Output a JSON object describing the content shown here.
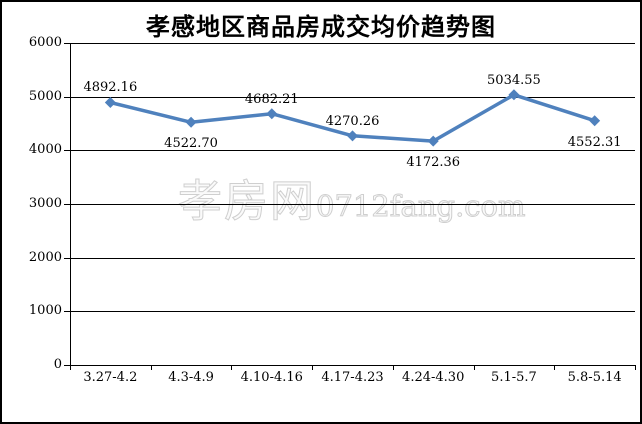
{
  "chart_data": {
    "type": "line",
    "title": "孝感地区商品房成交均价趋势图",
    "categories": [
      "3.27-4.2",
      "4.3-4.9",
      "4.10-4.16",
      "4.17-4.23",
      "4.24-4.30",
      "5.1-5.7",
      "5.8-5.14"
    ],
    "values": [
      4892.16,
      4522.7,
      4682.21,
      4270.26,
      4172.36,
      5034.55,
      4552.31
    ],
    "data_labels": [
      "4892.16",
      "4522.70",
      "4682.21",
      "4270.26",
      "4172.36",
      "5034.55",
      "4552.31"
    ],
    "label_positions": [
      "above",
      "below",
      "above",
      "above",
      "below",
      "above",
      "below"
    ],
    "xlabel": "",
    "ylabel": "",
    "ylim": [
      0,
      6000
    ],
    "ytick_interval": 1000,
    "yticks": [
      "0",
      "1000",
      "2000",
      "3000",
      "4000",
      "5000",
      "6000"
    ],
    "grid": true,
    "legend_position": "none",
    "line_color": "#4F81BD",
    "marker": "diamond",
    "axis_color": "#000000",
    "background_color": "#ffffff"
  },
  "watermark": {
    "site_name": "孝房网",
    "site_url": "0712fang.com"
  }
}
